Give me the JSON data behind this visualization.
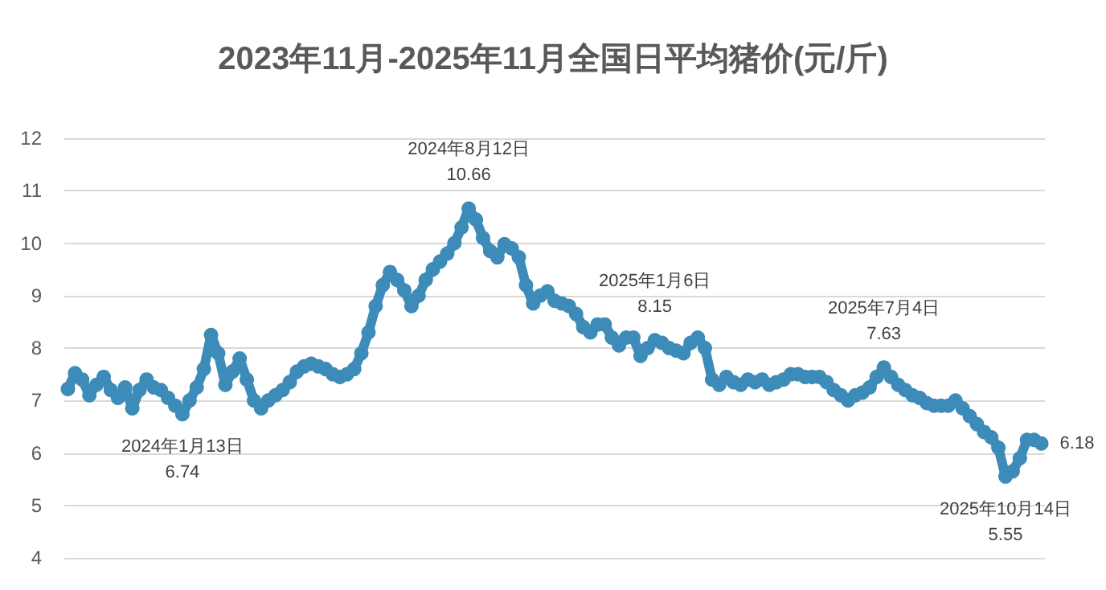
{
  "chart_data": {
    "type": "line",
    "title": "2023年11月-2025年11月全国日平均猪价(元/斤)",
    "categories": [
      null,
      null,
      null,
      null,
      null,
      null,
      null,
      null,
      null,
      null,
      null,
      null,
      null,
      null,
      null,
      null,
      null,
      null,
      null,
      null,
      null,
      null,
      null,
      null,
      null,
      null,
      null,
      null,
      null,
      null,
      null,
      null,
      null,
      null,
      null,
      null,
      null,
      null,
      null,
      null,
      null,
      null,
      null,
      null,
      null,
      null,
      null,
      null,
      null,
      null,
      null,
      null,
      null,
      null,
      null,
      null,
      null,
      null,
      null,
      null,
      null,
      null,
      null,
      null,
      null,
      null,
      null,
      null,
      null,
      null,
      null,
      null,
      null,
      null,
      null,
      null,
      null,
      null,
      null,
      null,
      null,
      null,
      null,
      null,
      null,
      null,
      null,
      null,
      null,
      null,
      null,
      null,
      null,
      null,
      null,
      null,
      null,
      null,
      null,
      null,
      null,
      null,
      null,
      null,
      null,
      null,
      null,
      null,
      null,
      null,
      null,
      null,
      null,
      null,
      null,
      null,
      null,
      null,
      null,
      null,
      null,
      null,
      null,
      null,
      null,
      null,
      null,
      null,
      null,
      null,
      null,
      null,
      null,
      null,
      null,
      null,
      null
    ],
    "series": [
      {
        "color": "#3d8bb8",
        "values": [
          7.22,
          7.52,
          7.4,
          7.1,
          7.3,
          7.45,
          7.2,
          7.05,
          7.25,
          6.85,
          7.2,
          7.4,
          7.25,
          7.2,
          7.05,
          6.9,
          6.74,
          7.0,
          7.25,
          7.6,
          8.25,
          7.9,
          7.3,
          7.55,
          7.8,
          7.4,
          7.0,
          6.85,
          7.0,
          7.1,
          7.2,
          7.35,
          7.55,
          7.65,
          7.7,
          7.65,
          7.6,
          7.5,
          7.45,
          7.5,
          7.6,
          7.9,
          8.3,
          8.8,
          9.2,
          9.45,
          9.3,
          9.1,
          8.8,
          9.0,
          9.3,
          9.5,
          9.65,
          9.8,
          10.0,
          10.3,
          10.66,
          10.45,
          10.1,
          9.85,
          9.73,
          9.98,
          9.9,
          9.73,
          9.2,
          8.85,
          9.0,
          9.08,
          8.9,
          8.85,
          8.8,
          8.65,
          8.4,
          8.3,
          8.45,
          8.45,
          8.2,
          8.05,
          8.2,
          8.2,
          7.85,
          8.0,
          8.15,
          8.1,
          8.0,
          7.95,
          7.9,
          8.1,
          8.2,
          8.0,
          7.4,
          7.3,
          7.45,
          7.35,
          7.3,
          7.4,
          7.35,
          7.4,
          7.3,
          7.35,
          7.4,
          7.5,
          7.5,
          7.45,
          7.45,
          7.45,
          7.35,
          7.2,
          7.1,
          7.0,
          7.1,
          7.15,
          7.25,
          7.45,
          7.63,
          7.45,
          7.3,
          7.2,
          7.1,
          7.05,
          6.95,
          6.9,
          6.9,
          6.9,
          7.0,
          6.85,
          6.7,
          6.55,
          6.4,
          6.3,
          6.1,
          5.55,
          5.65,
          5.9,
          6.25,
          6.25,
          6.18
        ],
        "value_labels": [
          null,
          null,
          null,
          null,
          null,
          null,
          null,
          null,
          null,
          null,
          null,
          null,
          null,
          null,
          null,
          null,
          null,
          null,
          null,
          null,
          null,
          null,
          null,
          null,
          null,
          null,
          null,
          null,
          null,
          null,
          null,
          null,
          null,
          null,
          null,
          null,
          null,
          null,
          null,
          null,
          null,
          null,
          null,
          null,
          null,
          null,
          null,
          null,
          null,
          null,
          null,
          null,
          null,
          null,
          null,
          null,
          null,
          null,
          null,
          null,
          null,
          null,
          null,
          null,
          null,
          null,
          null,
          null,
          null,
          null,
          null,
          null,
          null,
          null,
          null,
          null,
          null,
          null,
          null,
          null,
          null,
          null,
          null,
          null,
          null,
          null,
          null,
          null,
          null,
          null,
          null,
          null,
          null,
          null,
          null,
          null,
          null,
          null,
          null,
          null,
          null,
          null,
          null,
          null,
          null,
          null,
          null,
          null,
          null,
          null,
          null,
          null,
          null,
          null,
          null,
          null,
          null,
          null,
          null,
          null,
          null,
          null,
          null,
          null,
          null,
          null,
          null,
          null,
          null,
          null,
          null,
          null,
          null,
          null,
          null,
          null,
          "6.18"
        ]
      }
    ],
    "ylim": [
      4,
      12
    ],
    "yticks": [
      4,
      5,
      6,
      7,
      8,
      9,
      10,
      11,
      12
    ],
    "grid": "y",
    "marker": "circle",
    "tick_labels": "y",
    "annotations": [
      {
        "text": "2024年1月13日\n6.74",
        "y": 6.74
      },
      {
        "text": "2024年8月12日\n10.66",
        "y": 10.66
      },
      {
        "text": "2025年1月6日\n8.15",
        "y": 8.15
      },
      {
        "text": "2025年7月4日\n7.63",
        "y": 7.63
      },
      {
        "text": "2025年10月14日\n5.55",
        "y": 5.55
      }
    ]
  }
}
